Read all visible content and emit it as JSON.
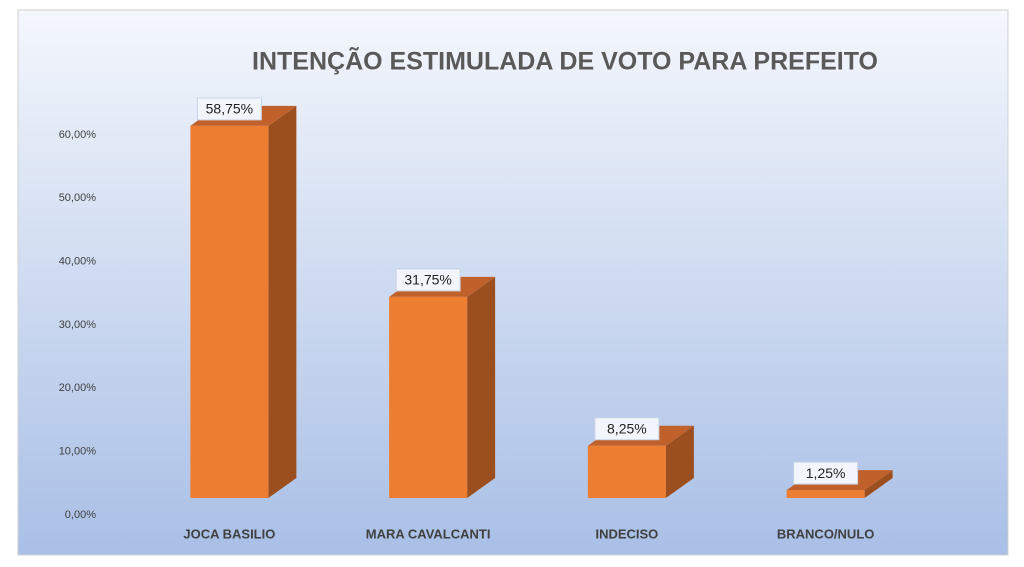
{
  "chart_data": {
    "type": "bar3d",
    "title": "INTENÇÃO ESTIMULADA DE VOTO PARA PREFEITO",
    "categories": [
      "JOCA BASILIO",
      "MARA CAVALCANTI",
      "INDECISO",
      "BRANCO/NULO"
    ],
    "values": [
      58.75,
      31.75,
      8.25,
      1.25
    ],
    "value_labels": [
      "58,75%",
      "31,75%",
      "8,25%",
      "1,25%"
    ],
    "color": "#ed7d31",
    "ylim": [
      0,
      60
    ],
    "yticks": [
      {
        "value": 0,
        "label": "0,00%"
      },
      {
        "value": 10,
        "label": "10,00%"
      },
      {
        "value": 20,
        "label": "20,00%"
      },
      {
        "value": 30,
        "label": "30,00%"
      },
      {
        "value": 40,
        "label": "40,00%"
      },
      {
        "value": 50,
        "label": "50,00%"
      },
      {
        "value": 60,
        "label": "60,00%"
      }
    ],
    "grid": false
  }
}
